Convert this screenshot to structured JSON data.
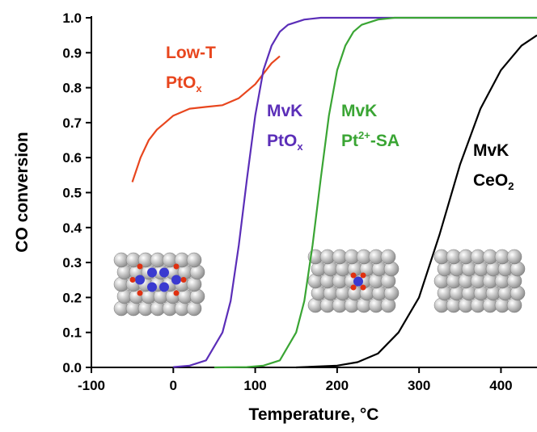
{
  "chart_data": {
    "type": "line",
    "x_label": "Temperature, °C",
    "y_label": "CO conversion",
    "xlim": [
      -100,
      444
    ],
    "ylim": [
      0,
      1
    ],
    "xticks": [
      -100,
      0,
      100,
      200,
      300,
      400
    ],
    "yticks": [
      {
        "value": 0,
        "label": "0.0"
      },
      0.1,
      0.2,
      0.3,
      0.4,
      0.5,
      0.6,
      0.7,
      0.8,
      0.9,
      {
        "value": 1,
        "label": "1.0"
      }
    ],
    "series": [
      {
        "color": "#e8461e",
        "x": [
          -50,
          -40,
          -30,
          -20,
          -10,
          0,
          20,
          40,
          60,
          80,
          100,
          110,
          120,
          130
        ],
        "values": [
          0.53,
          0.6,
          0.65,
          0.68,
          0.7,
          0.72,
          0.74,
          0.745,
          0.75,
          0.77,
          0.81,
          0.84,
          0.87,
          0.89
        ]
      },
      {
        "color": "#5b2eb8",
        "x": [
          0,
          20,
          40,
          60,
          70,
          80,
          90,
          100,
          110,
          120,
          130,
          140,
          160,
          180,
          200,
          250,
          300,
          444
        ],
        "values": [
          0.001,
          0.005,
          0.02,
          0.1,
          0.19,
          0.35,
          0.54,
          0.72,
          0.85,
          0.92,
          0.96,
          0.98,
          0.995,
          1,
          1,
          1,
          1,
          1
        ]
      },
      {
        "color": "#3aa534",
        "x": [
          50,
          90,
          110,
          130,
          150,
          160,
          170,
          180,
          190,
          200,
          210,
          220,
          230,
          250,
          270,
          300,
          444
        ],
        "values": [
          0,
          0.001,
          0.005,
          0.02,
          0.1,
          0.19,
          0.35,
          0.54,
          0.72,
          0.85,
          0.92,
          0.96,
          0.98,
          0.995,
          1,
          1,
          1
        ]
      },
      {
        "color": "#000000",
        "x": [
          150,
          200,
          225,
          250,
          275,
          300,
          325,
          350,
          375,
          400,
          425,
          444
        ],
        "values": [
          0,
          0.005,
          0.015,
          0.04,
          0.1,
          0.2,
          0.38,
          0.58,
          0.74,
          0.85,
          0.92,
          0.95
        ]
      }
    ],
    "annotations": [
      {
        "color": "#e8461e",
        "lines": [
          [
            {
              "text": "Low-T"
            }
          ],
          [
            {
              "text": "PtO"
            },
            {
              "text": "x",
              "script": "sub"
            }
          ]
        ]
      },
      {
        "color": "#5b2eb8",
        "lines": [
          [
            {
              "text": "MvK"
            }
          ],
          [
            {
              "text": "PtO"
            },
            {
              "text": "x",
              "script": "sub"
            }
          ]
        ]
      },
      {
        "color": "#3aa534",
        "lines": [
          [
            {
              "text": "MvK"
            }
          ],
          [
            {
              "text": "Pt"
            },
            {
              "text": "2+",
              "script": "sup"
            },
            {
              "text": "-SA"
            }
          ]
        ]
      },
      {
        "color": "#000000",
        "lines": [
          [
            {
              "text": "MvK"
            }
          ],
          [
            {
              "text": "CeO"
            },
            {
              "text": "2",
              "script": "sub"
            }
          ]
        ]
      }
    ]
  }
}
